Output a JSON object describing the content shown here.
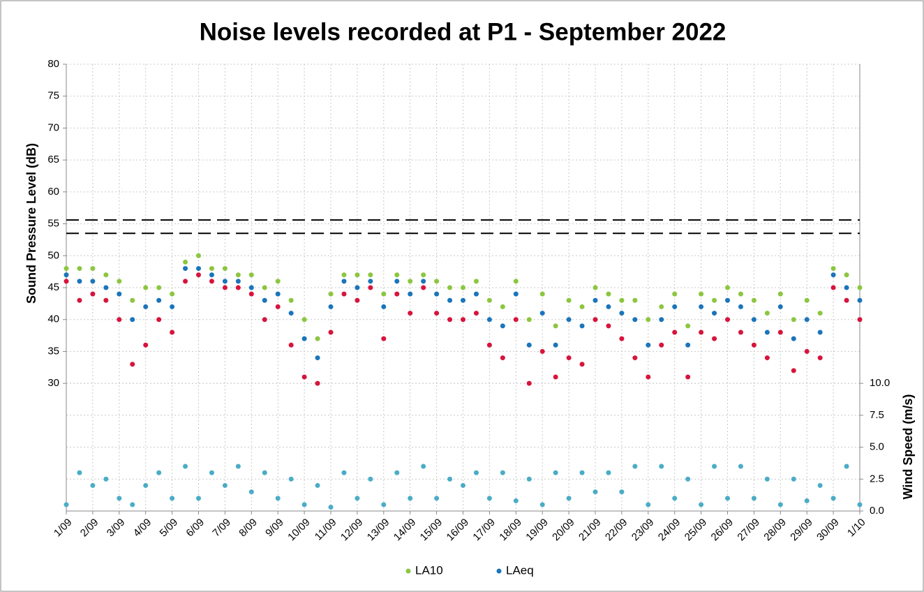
{
  "chart_data": {
    "type": "scatter",
    "title": "Noise levels recorded at P1 - September 2022",
    "y_label": "Sound Pressure Level (dB)",
    "y2_label": "Wind Speed (m/s)",
    "xlim": [
      0,
      30
    ],
    "xticks": [
      {
        "value": 0,
        "label": "1/09"
      },
      {
        "value": 1,
        "label": "2/09"
      },
      {
        "value": 2,
        "label": "3/09"
      },
      {
        "value": 3,
        "label": "4/09"
      },
      {
        "value": 4,
        "label": "5/09"
      },
      {
        "value": 5,
        "label": "6/09"
      },
      {
        "value": 6,
        "label": "7/09"
      },
      {
        "value": 7,
        "label": "8/09"
      },
      {
        "value": 8,
        "label": "9/09"
      },
      {
        "value": 9,
        "label": "10/09"
      },
      {
        "value": 10,
        "label": "11/09"
      },
      {
        "value": 11,
        "label": "12/09"
      },
      {
        "value": 12,
        "label": "13/09"
      },
      {
        "value": 13,
        "label": "14/09"
      },
      {
        "value": 14,
        "label": "15/09"
      },
      {
        "value": 15,
        "label": "16/09"
      },
      {
        "value": 16,
        "label": "17/09"
      },
      {
        "value": 17,
        "label": "18/09"
      },
      {
        "value": 18,
        "label": "19/09"
      },
      {
        "value": 19,
        "label": "20/09"
      },
      {
        "value": 20,
        "label": "21/09"
      },
      {
        "value": 21,
        "label": "22/09"
      },
      {
        "value": 22,
        "label": "23/09"
      },
      {
        "value": 23,
        "label": "24/09"
      },
      {
        "value": 24,
        "label": "25/09"
      },
      {
        "value": 25,
        "label": "26/09"
      },
      {
        "value": 26,
        "label": "27/09"
      },
      {
        "value": 27,
        "label": "28/09"
      },
      {
        "value": 28,
        "label": "29/09"
      },
      {
        "value": 29,
        "label": "30/09"
      },
      {
        "value": 30,
        "label": "1/10"
      }
    ],
    "ylim": [
      10,
      80
    ],
    "yticks": [
      30,
      35,
      40,
      45,
      50,
      55,
      60,
      65,
      70,
      75,
      80
    ],
    "y2lim": [
      0,
      35
    ],
    "y2ticks": [
      {
        "value": 0,
        "label": "0.0"
      },
      2.5,
      {
        "value": 5,
        "label": "5.0"
      },
      7.5,
      {
        "value": 10,
        "label": "10.0"
      }
    ],
    "grid": true,
    "legend": "bottom",
    "reference_lines": [
      55.6,
      53.5
    ],
    "x": [
      0,
      0.5,
      1,
      1.5,
      2,
      2.5,
      3,
      3.5,
      4,
      4.5,
      5,
      5.5,
      6,
      6.5,
      7,
      7.5,
      8,
      8.5,
      9,
      9.5,
      10,
      10.5,
      11,
      11.5,
      12,
      12.5,
      13,
      13.5,
      14,
      14.5,
      15,
      15.5,
      16,
      16.5,
      17,
      17.5,
      18,
      18.5,
      19,
      19.5,
      20,
      20.5,
      21,
      21.5,
      22,
      22.5,
      23,
      23.5,
      24,
      24.5,
      25,
      25.5,
      26,
      26.5,
      27,
      27.5,
      28,
      28.5,
      29,
      29.5,
      30
    ],
    "series": [
      {
        "name": "LA10",
        "color": "#8cc63f",
        "values": [
          48,
          48,
          48,
          47,
          46,
          43,
          45,
          45,
          44,
          49,
          50,
          48,
          48,
          47,
          47,
          45,
          46,
          43,
          40,
          37,
          44,
          47,
          47,
          47,
          44,
          47,
          46,
          47,
          46,
          45,
          45,
          46,
          43,
          42,
          46,
          40,
          44,
          39,
          43,
          42,
          45,
          44,
          43,
          43,
          40,
          42,
          44,
          39,
          44,
          43,
          45,
          44,
          43,
          41,
          44,
          40,
          43,
          41,
          48,
          47,
          45
        ]
      },
      {
        "name": "LAeq",
        "color": "#1a75bb",
        "values": [
          47,
          46,
          46,
          45,
          44,
          40,
          42,
          43,
          42,
          48,
          48,
          47,
          46,
          46,
          45,
          43,
          44,
          41,
          37,
          34,
          42,
          46,
          45,
          46,
          42,
          46,
          44,
          46,
          44,
          43,
          43,
          44,
          40,
          39,
          44,
          36,
          41,
          36,
          40,
          39,
          43,
          42,
          41,
          40,
          36,
          40,
          42,
          36,
          42,
          41,
          43,
          42,
          40,
          38,
          42,
          37,
          40,
          38,
          47,
          45,
          43
        ]
      },
      {
        "color": "#d7143c",
        "values": [
          46,
          43,
          44,
          43,
          40,
          33,
          36,
          40,
          38,
          46,
          47,
          46,
          45,
          45,
          44,
          40,
          42,
          36,
          31,
          30,
          38,
          44,
          43,
          45,
          37,
          44,
          41,
          45,
          41,
          40,
          40,
          41,
          36,
          34,
          40,
          30,
          35,
          31,
          34,
          33,
          40,
          39,
          37,
          34,
          31,
          36,
          38,
          31,
          38,
          37,
          40,
          38,
          36,
          34,
          38,
          32,
          35,
          34,
          45,
          43,
          40
        ]
      },
      {
        "color": "#4bacc6",
        "axis": "y2",
        "values": [
          0.5,
          3,
          2,
          2.5,
          1,
          0.5,
          2,
          3,
          1,
          3.5,
          1,
          3,
          2,
          3.5,
          1.5,
          3,
          1,
          2.5,
          0.5,
          2,
          0.3,
          3,
          1,
          2.5,
          0.5,
          3,
          1,
          3.5,
          1,
          2.5,
          2,
          3,
          1,
          3,
          0.8,
          2.5,
          0.5,
          3,
          1,
          3,
          1.5,
          3,
          1.5,
          3.5,
          0.5,
          3.5,
          1,
          2.5,
          0.5,
          3.5,
          1,
          3.5,
          1,
          2.5,
          0.5,
          2.5,
          0.8,
          2,
          1,
          3.5,
          0.5
        ]
      }
    ]
  }
}
